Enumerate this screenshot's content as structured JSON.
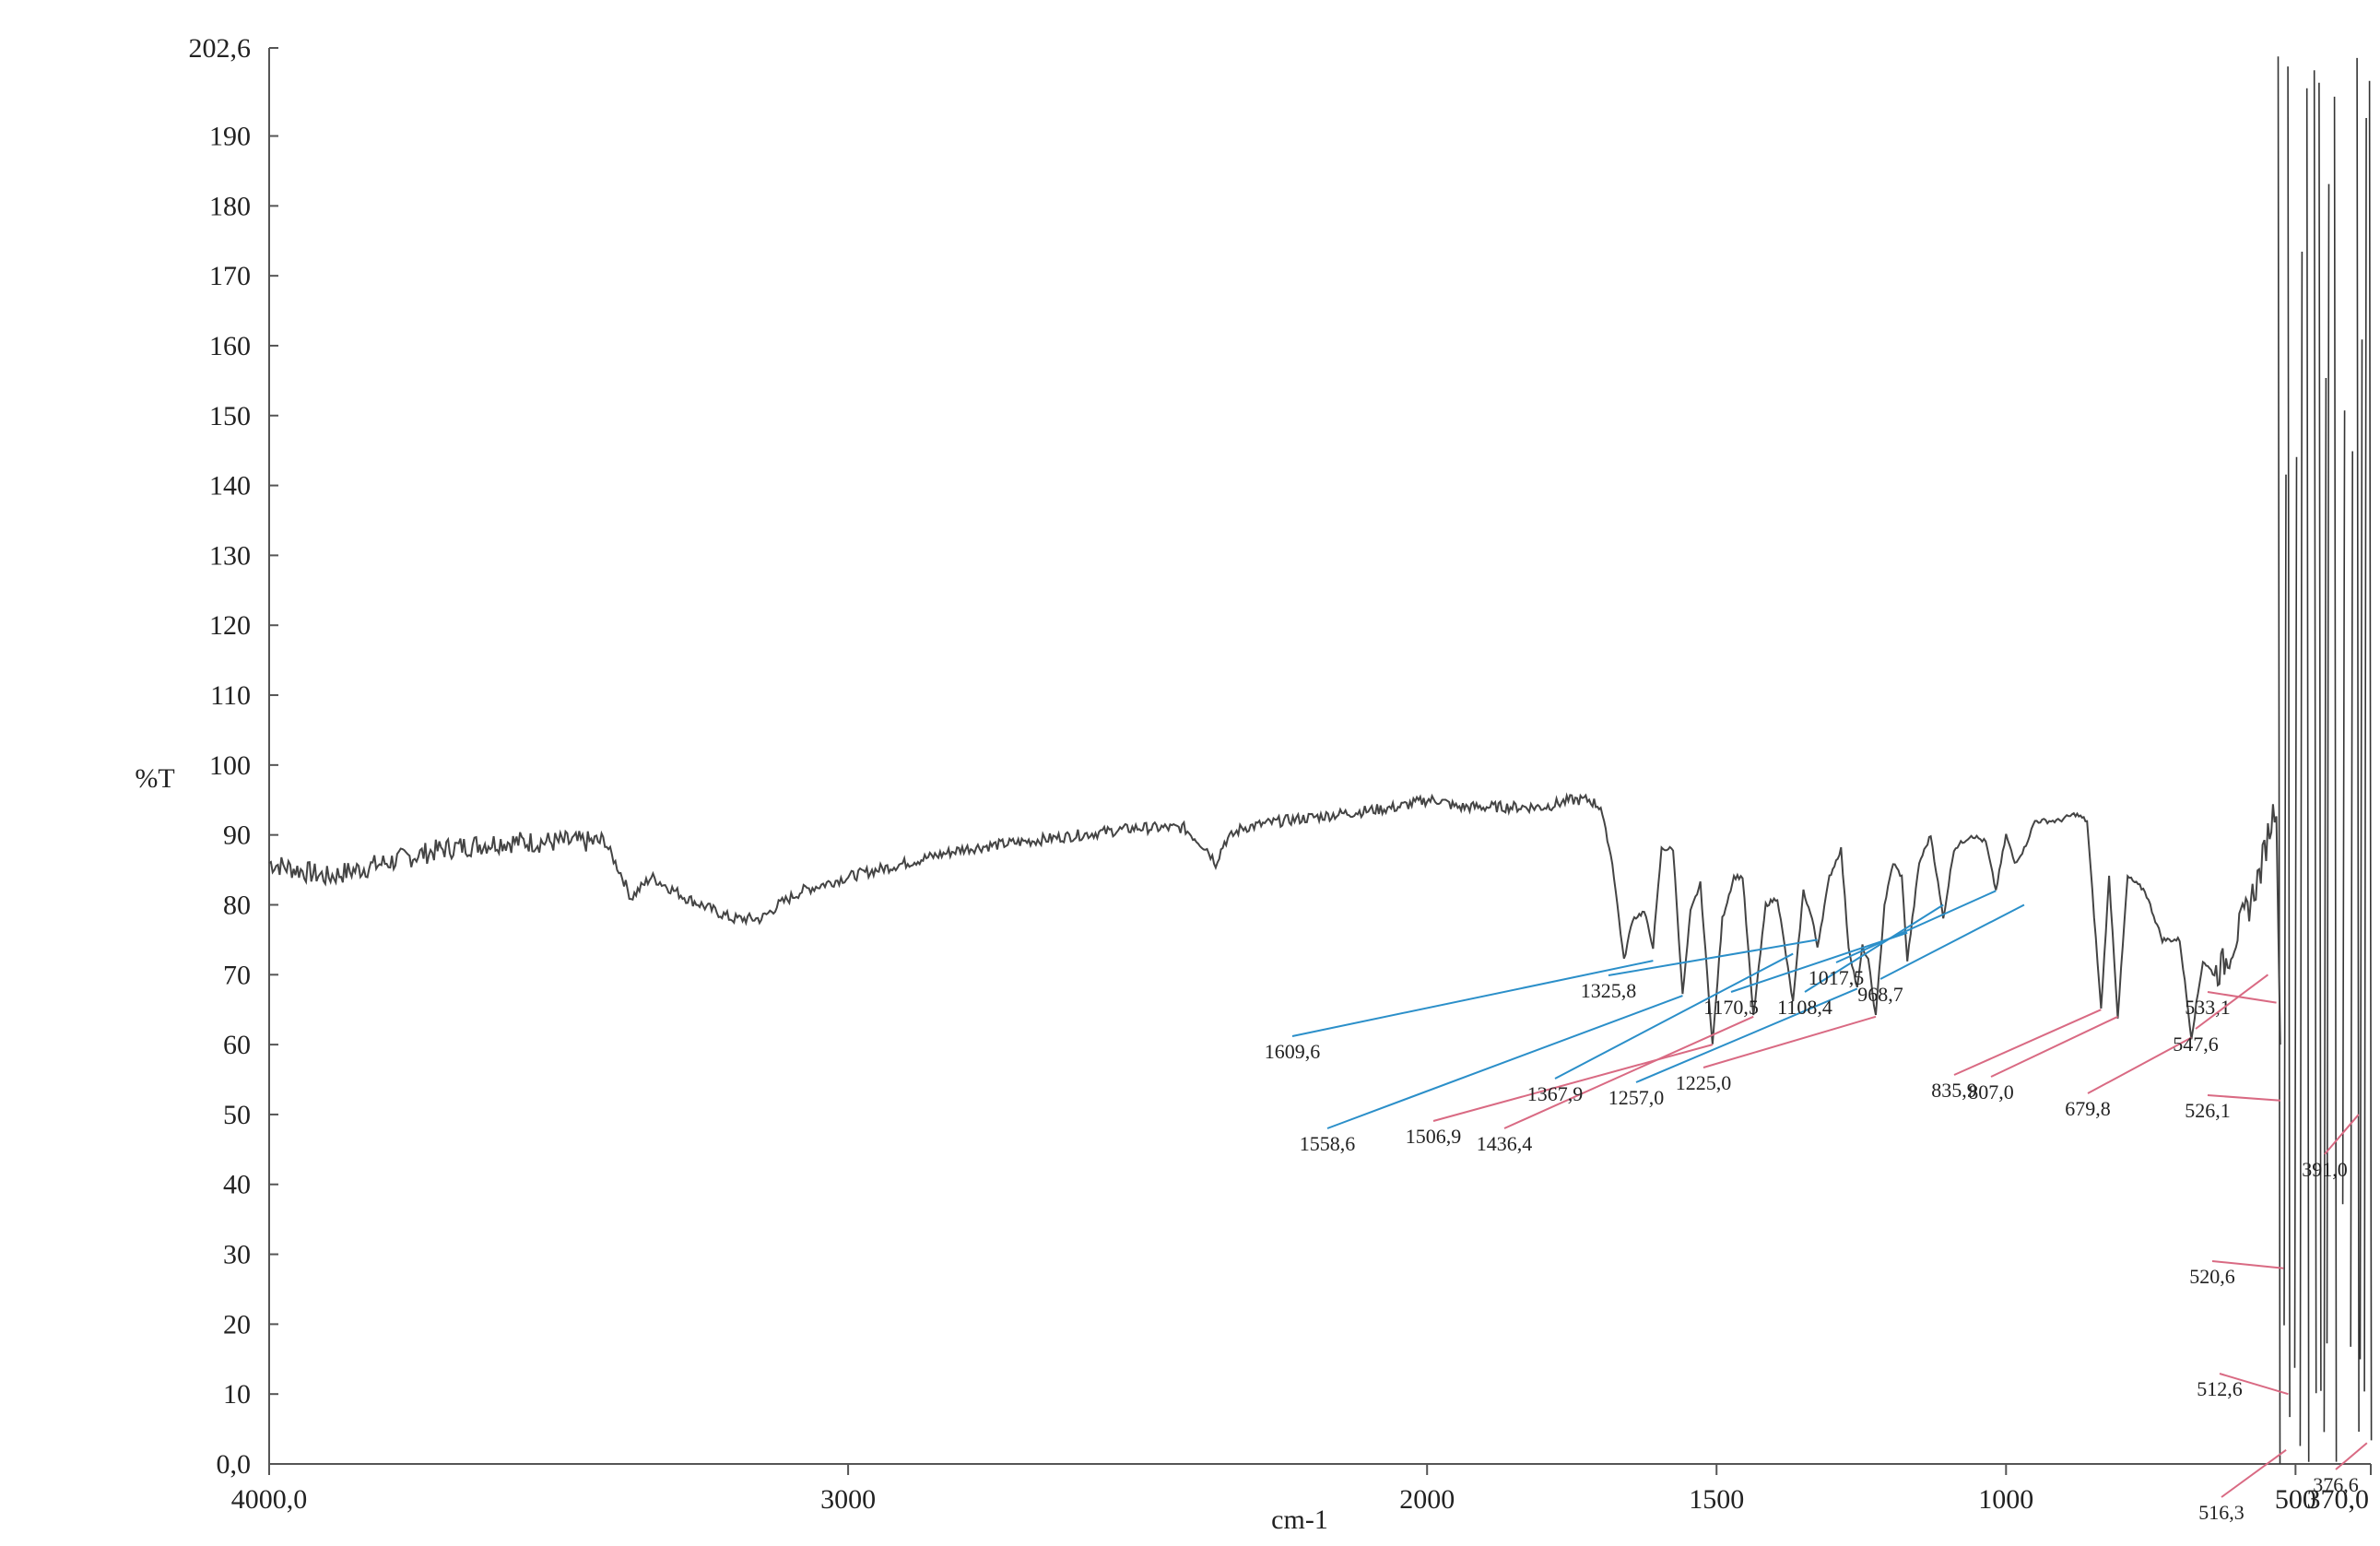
{
  "chart_data": {
    "type": "line",
    "title": "",
    "xlabel": "cm-1",
    "ylabel": "%T",
    "xlim": [
      4000.0,
      370.0
    ],
    "ylim": [
      0.0,
      202.6
    ],
    "x_reversed": true,
    "grid": false,
    "legend": "none",
    "line_color": "#444444",
    "x_ticks": [
      {
        "value": 4000,
        "label": "4000,0"
      },
      {
        "value": 3000,
        "label": "3000"
      },
      {
        "value": 2000,
        "label": "2000"
      },
      {
        "value": 1500,
        "label": "1500"
      },
      {
        "value": 1000,
        "label": "1000"
      },
      {
        "value": 500,
        "label": "500"
      },
      {
        "value": 370,
        "label": "370,0"
      }
    ],
    "y_ticks": [
      {
        "value": 0,
        "label": "0,0"
      },
      {
        "value": 10,
        "label": "10"
      },
      {
        "value": 20,
        "label": "20"
      },
      {
        "value": 30,
        "label": "30"
      },
      {
        "value": 40,
        "label": "40"
      },
      {
        "value": 50,
        "label": "50"
      },
      {
        "value": 60,
        "label": "60"
      },
      {
        "value": 70,
        "label": "70"
      },
      {
        "value": 80,
        "label": "80"
      },
      {
        "value": 90,
        "label": "90"
      },
      {
        "value": 100,
        "label": "100"
      },
      {
        "value": 110,
        "label": "110"
      },
      {
        "value": 120,
        "label": "120"
      },
      {
        "value": 130,
        "label": "130"
      },
      {
        "value": 140,
        "label": "140"
      },
      {
        "value": 150,
        "label": "150"
      },
      {
        "value": 160,
        "label": "160"
      },
      {
        "value": 170,
        "label": "170"
      },
      {
        "value": 180,
        "label": "180"
      },
      {
        "value": 190,
        "label": "190"
      },
      {
        "value": 202.6,
        "label": "202,6"
      }
    ],
    "series": [
      {
        "x": [
          4000,
          3900,
          3800,
          3700,
          3600,
          3500,
          3420,
          3390,
          3375,
          3340,
          3280,
          3200,
          3150,
          3120,
          3080,
          3040,
          3000,
          2950,
          2900,
          2850,
          2800,
          2700,
          2600,
          2500,
          2420,
          2380,
          2365,
          2350,
          2320,
          2250,
          2150,
          2050,
          2000,
          1980,
          1950,
          1900,
          1850,
          1800,
          1750,
          1720,
          1700,
          1680,
          1660,
          1645,
          1625,
          1609.6,
          1595,
          1575,
          1558.6,
          1545,
          1528,
          1506.9,
          1490,
          1470,
          1455,
          1436.4,
          1415,
          1395,
          1367.9,
          1350,
          1335,
          1325.8,
          1305,
          1285,
          1272,
          1257,
          1248,
          1238,
          1225,
          1210,
          1195,
          1180,
          1170.5,
          1150,
          1130,
          1108.4,
          1090,
          1060,
          1035,
          1017.5,
          1000,
          985,
          968.7,
          950,
          910,
          880,
          860,
          835.9,
          822,
          807,
          790,
          760,
          730,
          700,
          679.8,
          660,
          640,
          620,
          600,
          580,
          560,
          547.6,
          533.1,
          526.3
        ],
        "y": [
          86,
          84,
          86,
          88,
          89,
          89,
          89,
          84,
          81,
          84,
          81,
          78,
          78,
          80,
          82,
          83,
          84,
          85,
          86,
          87,
          88,
          89,
          90,
          91,
          91,
          88,
          86,
          89,
          91,
          92,
          93,
          94,
          95,
          95,
          94,
          94,
          94,
          94,
          95,
          95,
          94,
          86,
          72,
          78,
          79,
          74,
          88,
          88,
          67,
          79,
          83,
          60,
          78,
          84,
          84,
          64,
          80,
          81,
          66,
          82,
          78,
          74,
          84,
          88,
          74,
          68,
          74,
          72,
          64,
          80,
          86,
          84,
          72,
          86,
          90,
          78,
          88,
          90,
          89,
          82,
          90,
          86,
          88,
          92,
          92,
          93,
          92,
          65,
          84,
          64,
          84,
          82,
          75,
          75,
          61,
          72,
          70,
          72,
          76,
          80,
          85,
          90,
          95,
          60
        ]
      }
    ],
    "peaks": [
      {
        "x": 1609.6,
        "label": "1609,6"
      },
      {
        "x": 1558.6,
        "label": "1558,6"
      },
      {
        "x": 1506.9,
        "label": "1506,9"
      },
      {
        "x": 1436.4,
        "label": "1436,4"
      },
      {
        "x": 1367.9,
        "label": "1367,9"
      },
      {
        "x": 1325.8,
        "label": "1325,8"
      },
      {
        "x": 1257.0,
        "label": "1257,0"
      },
      {
        "x": 1225.0,
        "label": "1225,0"
      },
      {
        "x": 1170.5,
        "label": "1170,5"
      },
      {
        "x": 1108.4,
        "label": "1108,4"
      },
      {
        "x": 1017.5,
        "label": "1017,5"
      },
      {
        "x": 968.7,
        "label": "968,7"
      },
      {
        "x": 835.9,
        "label": "835,9"
      },
      {
        "x": 807.0,
        "label": "807,0"
      },
      {
        "x": 679.8,
        "label": "679,8"
      },
      {
        "x": 533.1,
        "label": "533,1"
      },
      {
        "x": 547.6,
        "label": "547,6"
      },
      {
        "x": 526.1,
        "label": "526,1"
      },
      {
        "x": 391.0,
        "label": "391,0"
      },
      {
        "x": 520.6,
        "label": "520,6"
      },
      {
        "x": 512.6,
        "label": "512,6"
      },
      {
        "x": 516.3,
        "label": "516,3"
      },
      {
        "x": 376.6,
        "label": "376,6"
      }
    ],
    "noise_region": {
      "x_start": 530,
      "x_end": 372
    }
  }
}
